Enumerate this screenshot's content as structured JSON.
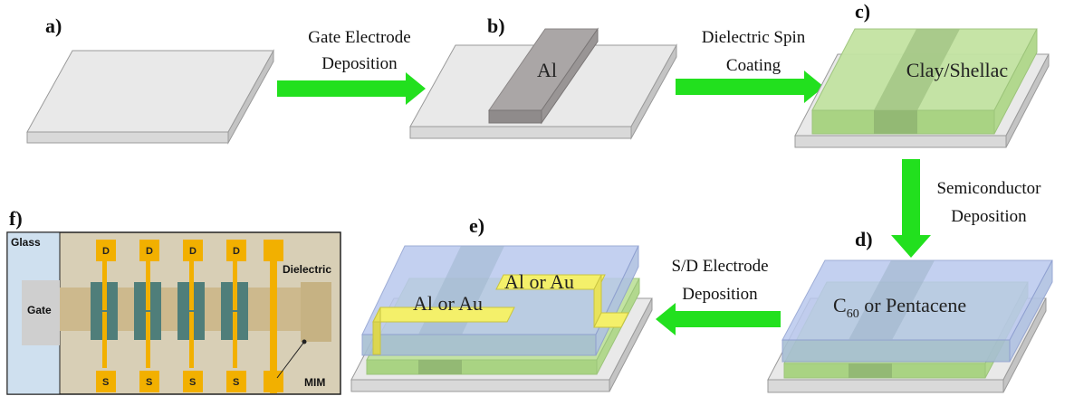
{
  "panels": {
    "a": {
      "label": "a)"
    },
    "b": {
      "label": "b)",
      "material": "Al"
    },
    "c": {
      "label": "c)",
      "material": "Clay/Shellac"
    },
    "d": {
      "label": "d)",
      "material_prefix": "C",
      "material_sub": "60",
      "material_suffix": " or Pentacene"
    },
    "e": {
      "label": "e)",
      "electrode_left": "Al or Au",
      "electrode_right": "Al or Au"
    },
    "f": {
      "label": "f)",
      "glass": "Glass",
      "gate": "Gate",
      "dielectric": "Dielectric",
      "mim": "MIM",
      "drain": "D",
      "source": "S"
    }
  },
  "steps": {
    "gate_line1": "Gate Electrode",
    "gate_line2": "Deposition",
    "dielectric_line1": "Dielectric Spin",
    "dielectric_line2": "Coating",
    "semi_line1": "Semiconductor",
    "semi_line2": "Deposition",
    "sd_line1": "S/D Electrode",
    "sd_line2": "Deposition"
  },
  "colors": {
    "substrate_top": "#eaeaea",
    "substrate_side": "#c9c9c9",
    "aluminium": "#a8a4a4",
    "dielectric": "#b9dd95",
    "semiconductor": "#a9b9e6",
    "electrode": "#f4f06a",
    "arrow": "#22e01e",
    "pad": "#f2b000",
    "channel": "#4f7e7a",
    "gate_strip": "#d3c196",
    "glass": "#cfe0ef"
  }
}
